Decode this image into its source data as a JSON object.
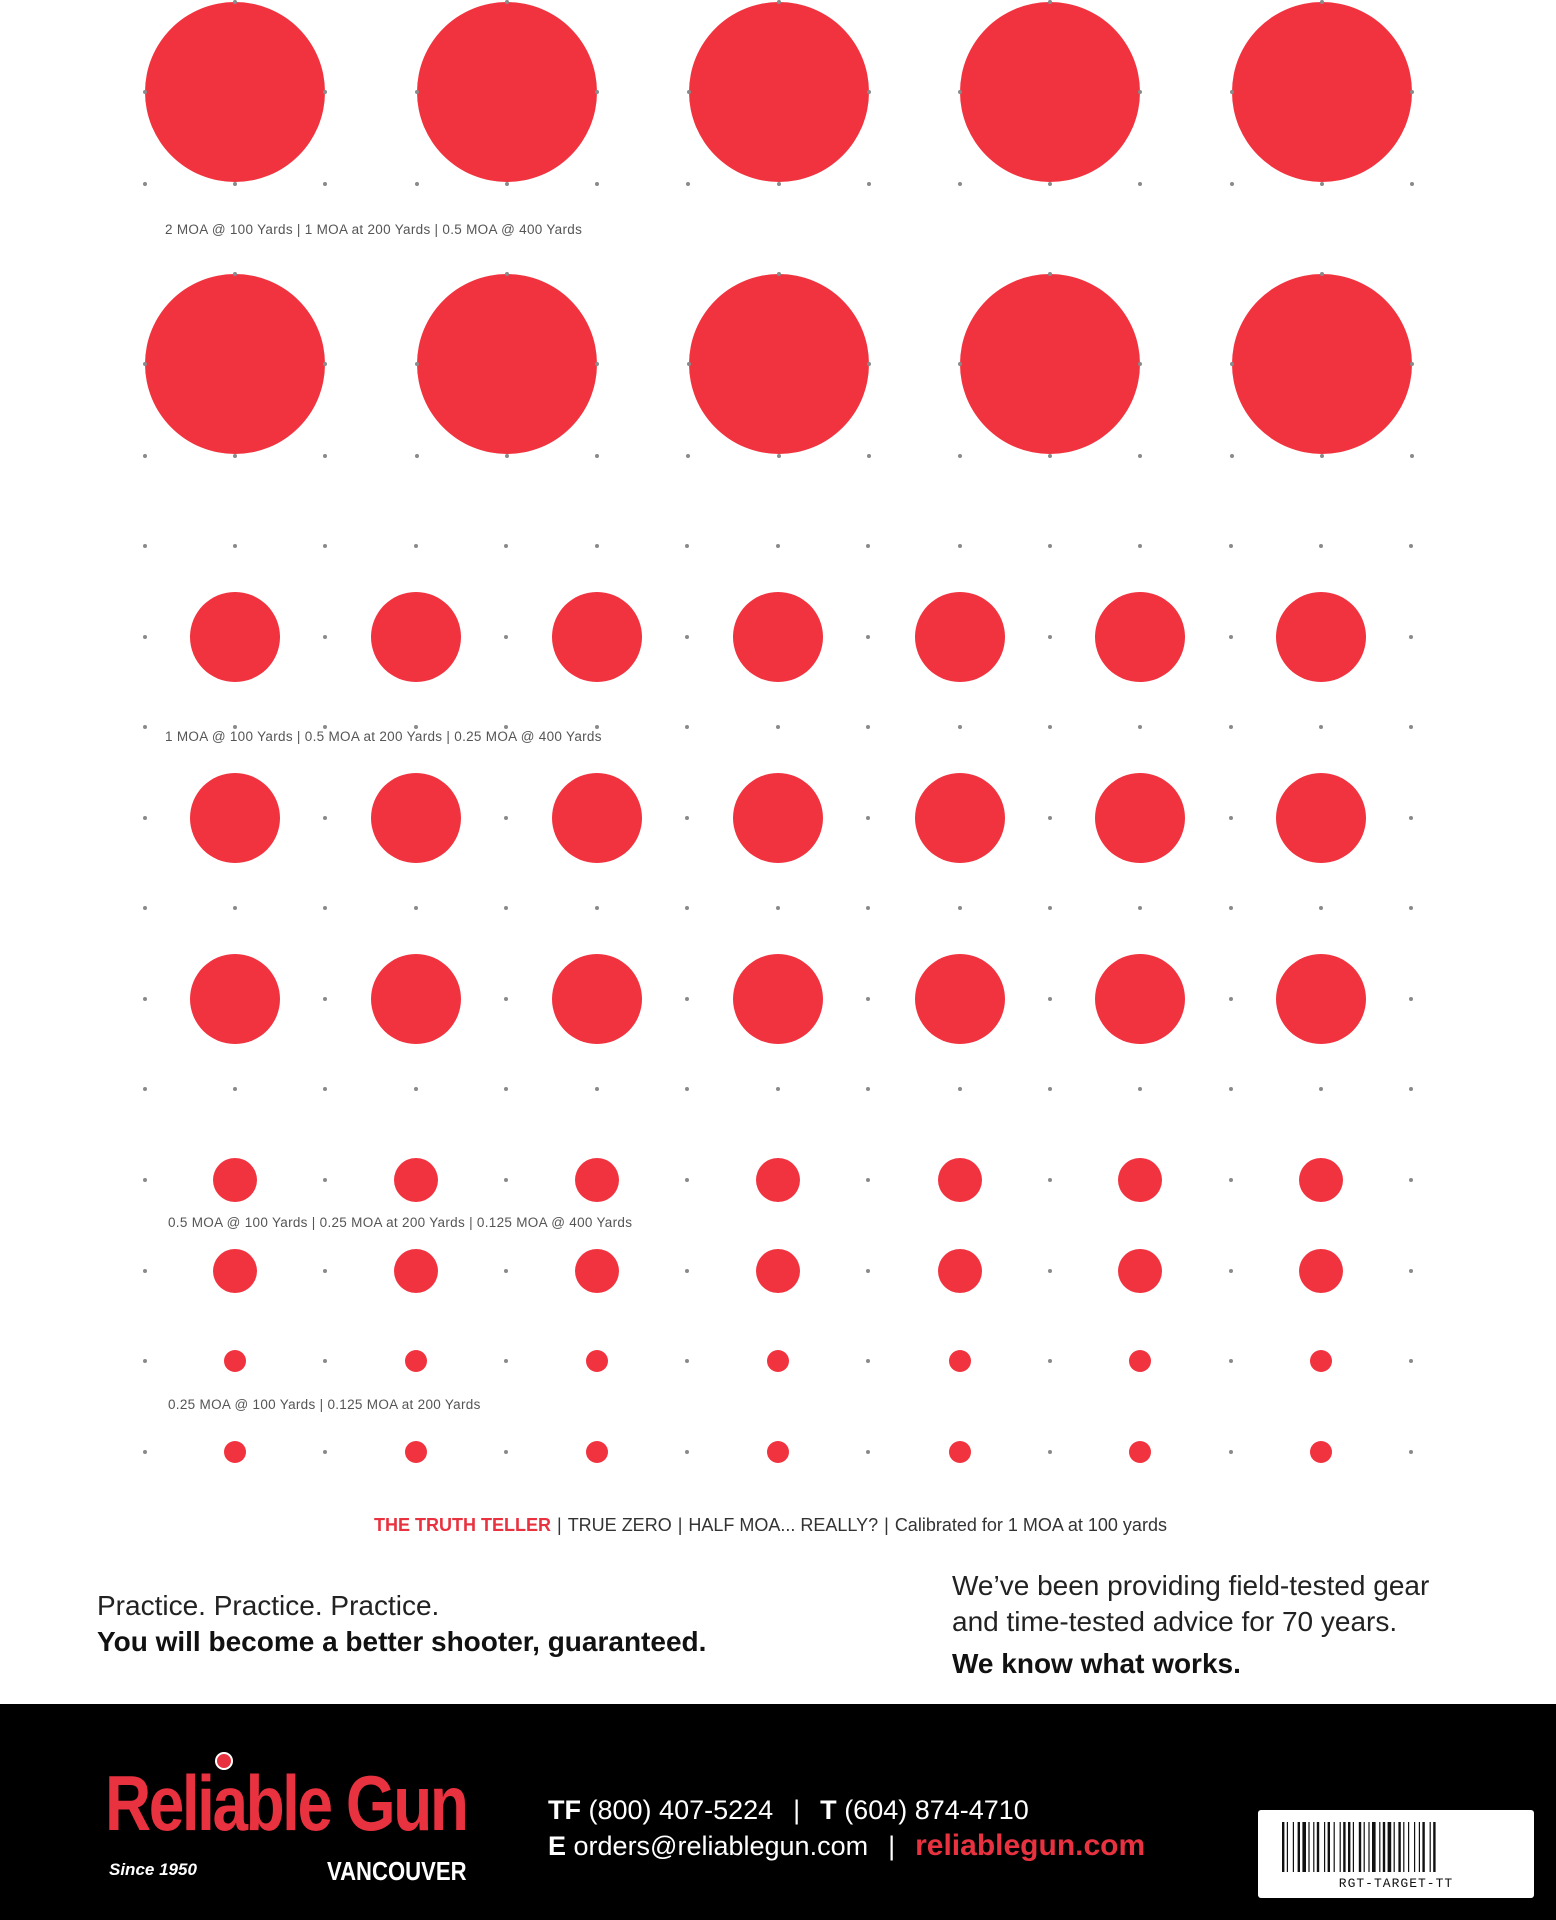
{
  "colors": {
    "target_red": "#f1333f",
    "dot_grey": "#8a8a8a",
    "brand_red": "#e8323f",
    "footer_bg": "#000000"
  },
  "targets": {
    "sections": [
      {
        "label": "2 MOA @ 100 Yards  |  1 MOA at 200 Yards  |  0.5 MOA @ 400 Yards",
        "columns": 5,
        "rows": 2
      },
      {
        "label": "1 MOA @ 100 Yards  |  0.5 MOA at 200 Yards  |  0.25 MOA @ 400 Yards",
        "columns": 7,
        "rows": 3
      },
      {
        "label": "0.5 MOA @ 100 Yards  |  0.25 MOA at 200 Yards  |  0.125 MOA @ 400 Yards",
        "columns": 7,
        "rows": 2
      },
      {
        "label": "0.25 MOA @ 100 Yards  |  0.125 MOA at 200 Yards",
        "columns": 7,
        "rows": 2
      }
    ]
  },
  "tagline": {
    "brand": "THE TRUTH TELLER",
    "items": [
      "TRUE ZERO",
      "HALF MOA... REALLY?",
      "Calibrated for 1 MOA at 100 yards"
    ]
  },
  "promo": {
    "left_line1": "Practice. Practice. Practice.",
    "left_line2": "You will become a better shooter, guaranteed.",
    "right_line1": "We’ve been providing field-tested gear",
    "right_line2": "and time-tested advice for 70 years.",
    "right_line3": "We know what works."
  },
  "footer": {
    "logo_word": "Reliable Gun",
    "logo_since": "Since 1950",
    "logo_city": "VANCOUVER",
    "tf_label": "TF",
    "tf_number": "(800) 407-5224",
    "t_label": "T",
    "t_number": "(604) 874-4710",
    "e_label": "E",
    "email": "orders@reliablegun.com",
    "website": "reliablegun.com",
    "barcode_text": "RGT-TARGET-TT"
  }
}
